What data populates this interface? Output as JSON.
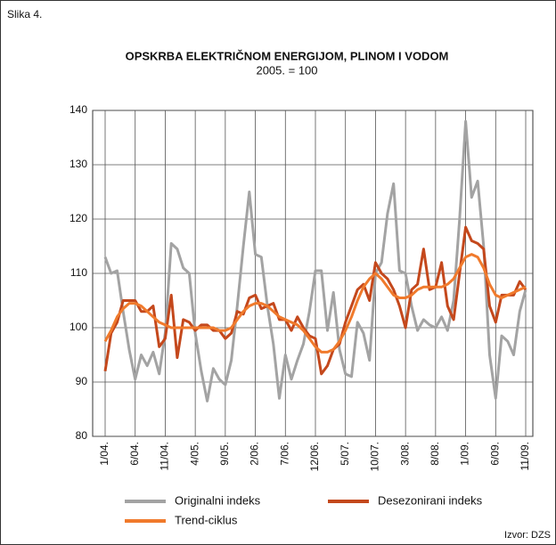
{
  "chart_data": {
    "type": "line",
    "figure_label": "Slika 4.",
    "title": "OPSKRBA ELEKTRIČNOM ENERGIJOM, PLINOM I VODOM",
    "subtitle": "2005. = 100",
    "source": "Izvor: DZS",
    "categories": [
      "1/04.",
      null,
      null,
      null,
      null,
      "6/04.",
      null,
      null,
      null,
      null,
      "11/04.",
      null,
      null,
      null,
      null,
      "4/05.",
      null,
      null,
      null,
      null,
      "9/05.",
      null,
      null,
      null,
      null,
      "2/06.",
      null,
      null,
      null,
      null,
      "7/06.",
      null,
      null,
      null,
      null,
      "12/06.",
      null,
      null,
      null,
      null,
      "5/07.",
      null,
      null,
      null,
      null,
      "10/07.",
      null,
      null,
      null,
      null,
      "3/08.",
      null,
      null,
      null,
      null,
      "8/08.",
      null,
      null,
      null,
      null,
      "1/09.",
      null,
      null,
      null,
      null,
      "6/09.",
      null,
      null,
      null,
      null,
      "11/09."
    ],
    "series": [
      {
        "name": "Originalni indeks",
        "color": "#a3a3a3",
        "values": [
          113,
          110,
          110.5,
          103,
          96,
          90.5,
          95,
          93,
          95.5,
          91.5,
          99,
          115.5,
          114.5,
          111,
          110,
          99,
          92,
          86.5,
          92.5,
          90.5,
          89.5,
          94,
          104,
          115,
          125,
          113.5,
          113,
          104,
          97,
          87,
          95,
          90.5,
          94,
          97,
          103,
          110.5,
          110.5,
          99.5,
          106.5,
          96,
          91.5,
          91,
          101,
          99,
          94,
          110,
          112,
          121,
          126.5,
          110.5,
          110,
          104,
          99.5,
          101.5,
          100.5,
          100,
          102,
          99.5,
          105,
          120,
          138,
          124,
          127,
          115,
          95,
          87,
          98.5,
          97.5,
          95,
          103,
          107
        ]
      },
      {
        "name": "Desezonirani indeks",
        "color": "#c4481c",
        "values": [
          92,
          99,
          101,
          105,
          105,
          105,
          103,
          103,
          104,
          96.5,
          98,
          106,
          94.5,
          101.5,
          101,
          99.5,
          100.5,
          100.5,
          99.5,
          99.5,
          98,
          99,
          103,
          102.5,
          105.5,
          106,
          103.5,
          104,
          104.5,
          101.5,
          101.5,
          99.5,
          102,
          100,
          98.5,
          98,
          91.5,
          93,
          96,
          97,
          101,
          104,
          107,
          108,
          105,
          112,
          110,
          109,
          107,
          104,
          100,
          107,
          108,
          114.5,
          107,
          107.5,
          112,
          104,
          101.5,
          110,
          118.5,
          116,
          115.5,
          114.5,
          104,
          101,
          106,
          106,
          106,
          108.5,
          107
        ]
      },
      {
        "name": "Trend-ciklus",
        "color": "#f07a2c",
        "values": [
          97.5,
          99.5,
          102,
          103.5,
          104.5,
          104.5,
          104,
          103,
          102,
          101,
          100.5,
          100,
          100,
          100,
          100,
          100,
          100,
          100,
          100,
          99.5,
          99.5,
          100,
          101.5,
          103,
          104,
          104.5,
          104.5,
          104,
          103,
          102,
          101.5,
          101,
          100.5,
          99.5,
          98,
          96.5,
          95.5,
          95.5,
          96,
          97.5,
          99.5,
          102,
          105,
          107.5,
          109,
          110,
          109,
          107.5,
          106,
          105.5,
          105.5,
          106,
          107,
          107.5,
          107.5,
          107.5,
          107.5,
          108,
          109,
          111,
          113,
          113.5,
          113,
          111,
          108,
          106,
          105.5,
          106,
          106.5,
          107,
          107.5
        ]
      }
    ],
    "ylim": [
      80,
      140
    ],
    "yticks": [
      80,
      90,
      100,
      110,
      120,
      130,
      140
    ],
    "grid": true
  }
}
